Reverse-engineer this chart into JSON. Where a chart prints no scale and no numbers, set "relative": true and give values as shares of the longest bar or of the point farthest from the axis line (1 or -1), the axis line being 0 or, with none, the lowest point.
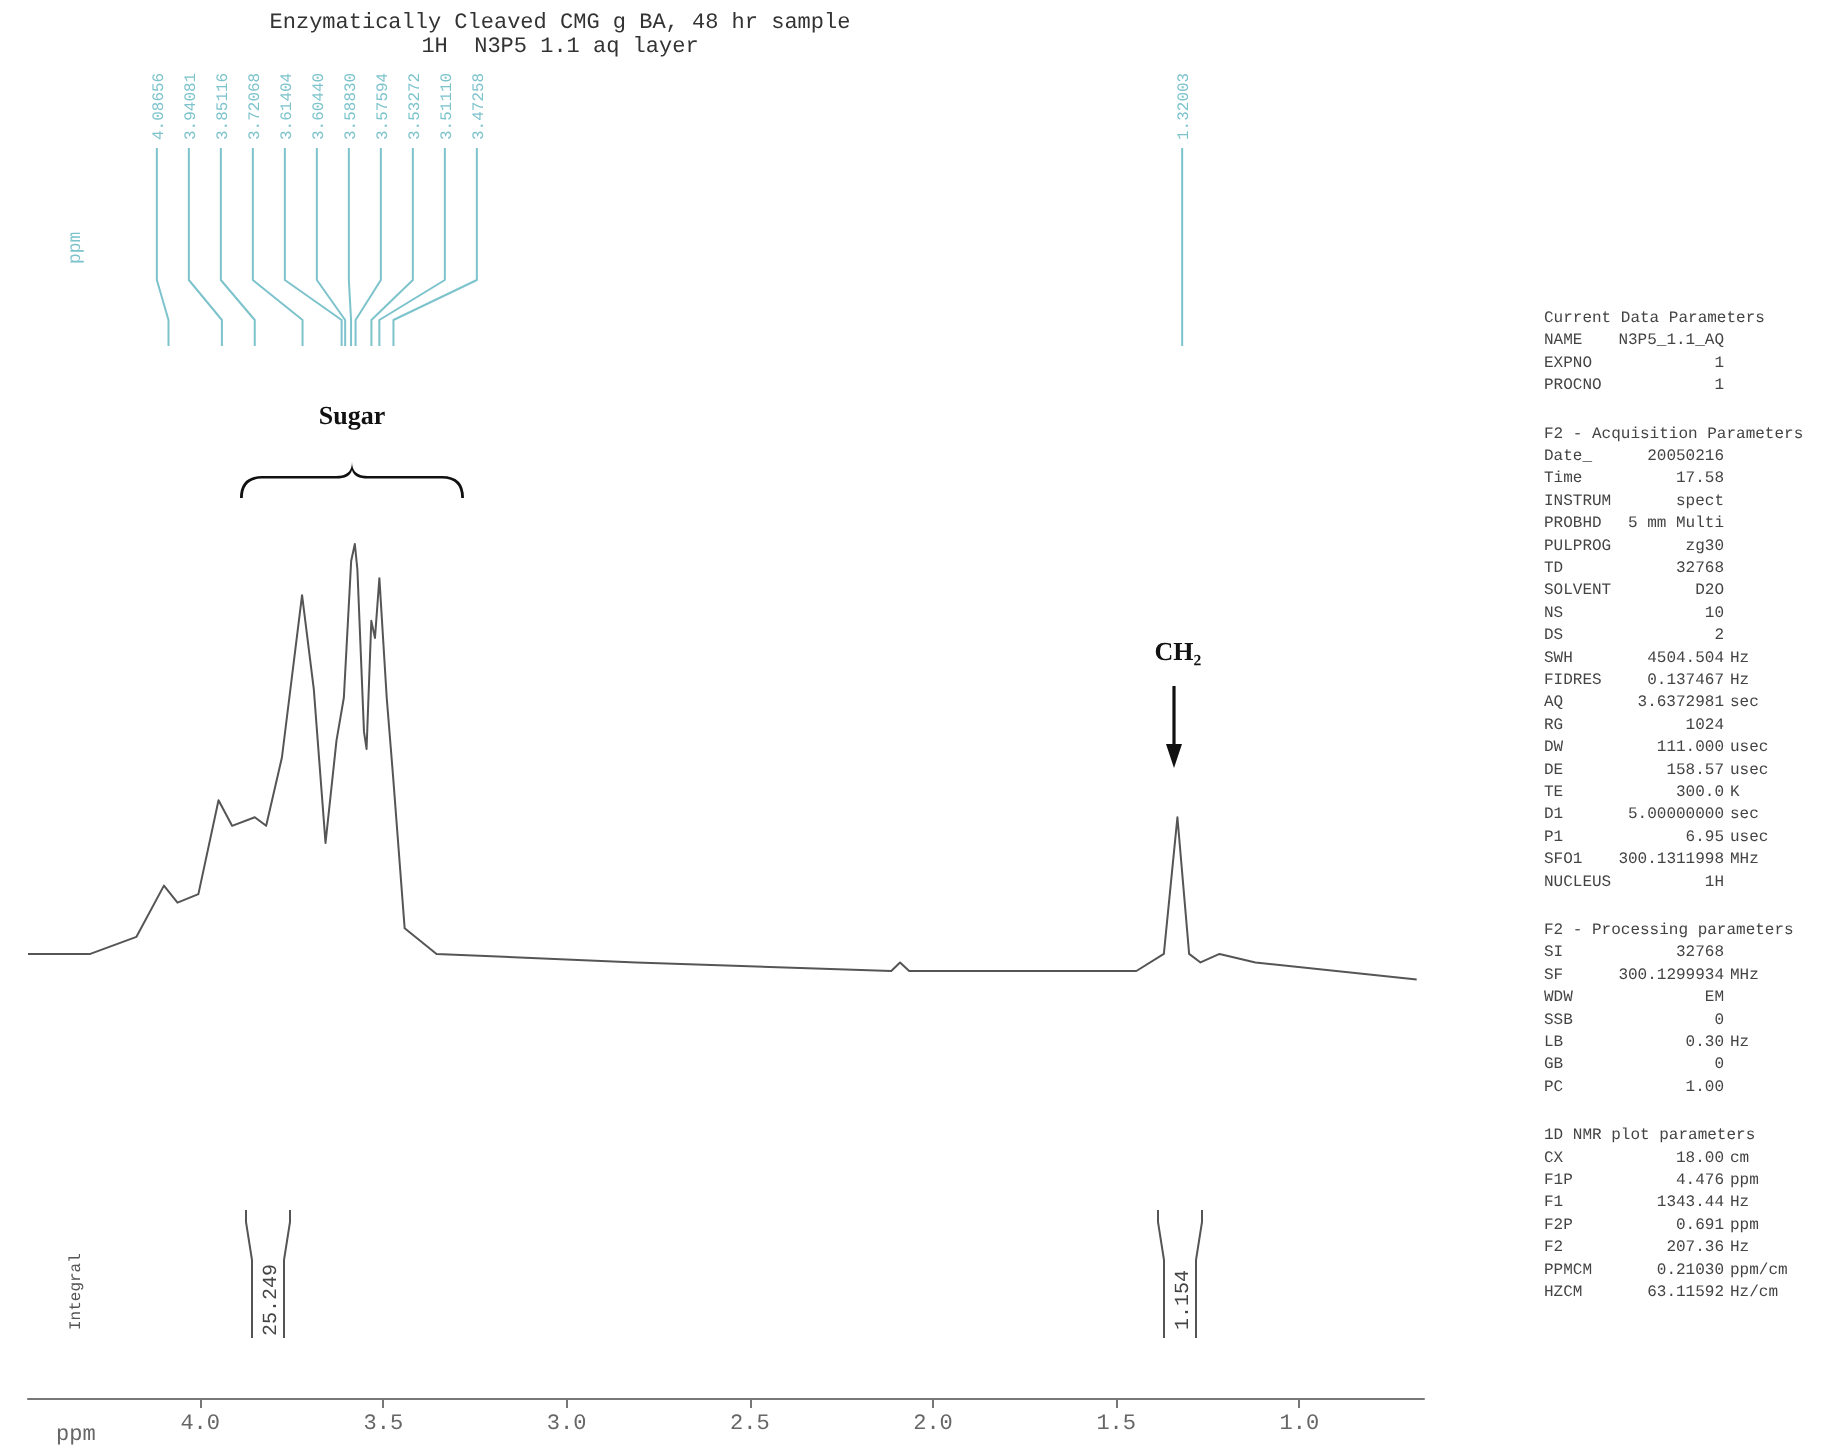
{
  "chart_data": {
    "type": "line",
    "title": "Enzymatically Cleaved CMG g BA, 48 hr sample",
    "subtitle": "1H  N3P5 1.1 aq layer",
    "xlabel": "ppm",
    "ylabel": "Integral",
    "relative": true,
    "marker": "none",
    "line_style": "solid",
    "xlim": [
      4.47,
      0.66
    ],
    "xticks": [
      {
        "value": 4,
        "label": "4.0"
      },
      {
        "value": 3.5,
        "label": "3.5"
      },
      {
        "value": 3,
        "label": "3.0"
      },
      {
        "value": 2.5,
        "label": "2.5"
      },
      {
        "value": 2,
        "label": "2.0"
      },
      {
        "value": 1.5,
        "label": "1.5"
      },
      {
        "value": 1,
        "label": "1.0"
      }
    ],
    "series": [
      {
        "color": "#555555",
        "x": [
          4.47,
          4.3,
          4.174,
          4.099,
          4.062,
          4.005,
          3.95,
          3.913,
          3.851,
          3.82,
          3.777,
          3.722,
          3.69,
          3.658,
          3.628,
          3.608,
          3.588,
          3.578,
          3.571,
          3.553,
          3.546,
          3.533,
          3.523,
          3.511,
          3.491,
          3.474,
          3.442,
          3.355,
          2.81,
          2.114,
          2.09,
          2.065,
          1.445,
          1.37,
          1.333,
          1.301,
          1.27,
          1.218,
          1.12,
          0.68
        ],
        "values": [
          0.52,
          0.52,
          0.54,
          0.6,
          0.58,
          0.59,
          0.7,
          0.67,
          0.68,
          0.67,
          0.75,
          0.94,
          0.83,
          0.65,
          0.77,
          0.82,
          0.98,
          1,
          0.97,
          0.78,
          0.76,
          0.91,
          0.89,
          0.96,
          0.82,
          0.73,
          0.55,
          0.52,
          0.51,
          0.5,
          0.51,
          0.5,
          0.5,
          0.52,
          0.68,
          0.52,
          0.51,
          0.52,
          0.51,
          0.49
        ]
      }
    ],
    "annotations": [
      "ppm",
      "Sugar",
      "CH₂",
      "25.249",
      "1.154",
      "Current Data Parameters",
      "NAME\tN3P5_1.1_AQ",
      "EXPNO\t1",
      "PROCNO\t1",
      "F2 - Acquisition Parameters",
      "Date_\t20050216",
      "Time\t17.58",
      "INSTRUM\tspect",
      "PROBHD\t5 mm Multi",
      "PULPROG\tzg30",
      "TD\t32768",
      "SOLVENT\tD2O",
      "NS\t10",
      "DS\t2",
      "SWH\t4504.504\tHz",
      "FIDRES\t0.137467\tHz",
      "AQ\t3.6372981\tsec",
      "RG\t1024",
      "DW\t111.000\tusec",
      "DE\t158.57\tusec",
      "TE\t300.0\tK",
      "D1\t5.00000000\tsec",
      "P1\t6.95\tusec",
      "SFO1\t300.1311998\tMHz",
      "NUCLEUS\t1H",
      "F2 - Processing parameters",
      "SI\t32768",
      "SF\t300.1299934\tMHz",
      "WDW\tEM",
      "SSB\t0",
      "LB\t0.30\tHz",
      "GB\t0",
      "PC\t1.00",
      "1D NMR plot parameters",
      "CX\t18.00\tcm",
      "F1P\t4.476\tppm",
      "F1\t1343.44\tHz",
      "F2P\t0.691\tppm",
      "F2\t207.36\tHz",
      "PPMCM\t0.21030\tppm/cm",
      "HZCM\t63.11592\tHz/cm",
      {
        "text": "4.08656",
        "x": 4.08656
      },
      {
        "text": "3.94081",
        "x": 3.94081
      },
      {
        "text": "3.85116",
        "x": 3.85116
      },
      {
        "text": "3.72068",
        "x": 3.72068
      },
      {
        "text": "3.61404",
        "x": 3.61404
      },
      {
        "text": "3.60440",
        "x": 3.6044
      },
      {
        "text": "3.58830",
        "x": 3.5883
      },
      {
        "text": "3.57594",
        "x": 3.57594
      },
      {
        "text": "3.53272",
        "x": 3.53272
      },
      {
        "text": "3.51110",
        "x": 3.5111
      },
      {
        "text": "3.47258",
        "x": 3.47258
      },
      {
        "text": "1.32003",
        "x": 1.32003
      }
    ]
  }
}
